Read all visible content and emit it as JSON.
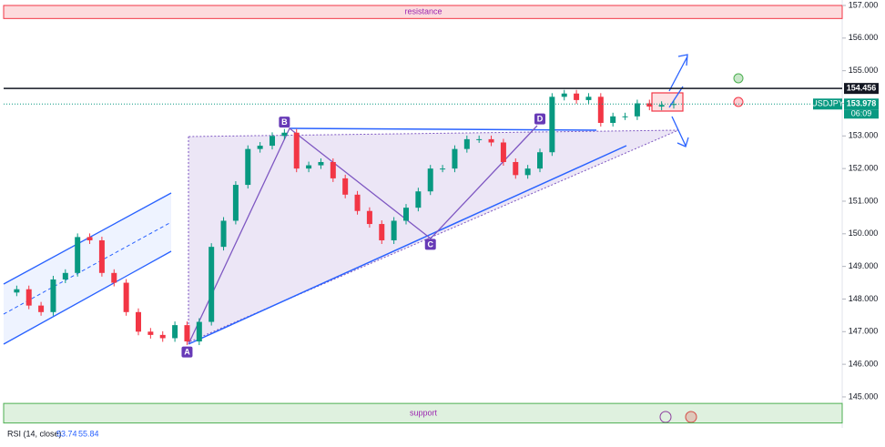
{
  "chart_data": {
    "type": "candlestick",
    "symbol": "USDJPY",
    "countdown": "06:09",
    "series": [
      {
        "name": "USDJPY",
        "up_color": "#089981",
        "down_color": "#f23645",
        "values": [
          148.2,
          148.3,
          147.8,
          147.6,
          148.6,
          148.8,
          149.9,
          149.8,
          148.8,
          148.5,
          147.6,
          147.0,
          146.9,
          146.8,
          147.2,
          146.7,
          147.3,
          149.6,
          150.4,
          151.5,
          152.6,
          152.7,
          153.0,
          153.1,
          152.0,
          152.1,
          152.2,
          151.7,
          151.2,
          150.7,
          150.3,
          149.8,
          150.4,
          150.8,
          151.3,
          152.0,
          152.0,
          152.6,
          152.9,
          152.9,
          152.8,
          152.2,
          151.8,
          152.0,
          152.5,
          154.2,
          154.3,
          154.1,
          154.2,
          153.4,
          153.6,
          153.6,
          154.0,
          153.9,
          153.95,
          153.978
        ]
      }
    ],
    "ylim": [
      144.0,
      157.15
    ],
    "yticks": [
      {
        "value": 145,
        "label": "145.000"
      },
      {
        "value": 146,
        "label": "146.000"
      },
      {
        "value": 147,
        "label": "147.000"
      },
      {
        "value": 148,
        "label": "148.000"
      },
      {
        "value": 149,
        "label": "149.000"
      },
      {
        "value": 150,
        "label": "150.000"
      },
      {
        "value": 151,
        "label": "151.000"
      },
      {
        "value": 152,
        "label": "152.000"
      },
      {
        "value": 153,
        "label": "153.000"
      },
      {
        "value": 154,
        "label": "154.000"
      },
      {
        "value": 155,
        "label": "155.000"
      },
      {
        "value": 156,
        "label": "156.000"
      },
      {
        "value": 157,
        "label": "157.000"
      }
    ],
    "levels": [
      {
        "value": 154.456,
        "label": "154.456",
        "color": "#131722"
      },
      {
        "value": 153.978,
        "label": "153.978",
        "color": "#089981"
      }
    ],
    "zones": [
      {
        "name": "resistance",
        "range": [
          156.6,
          157.0
        ],
        "color": "#f23645"
      },
      {
        "name": "support",
        "range": [
          144.2,
          144.8
        ],
        "color": "#4caf50"
      }
    ],
    "points": [
      {
        "label": "A",
        "index": 15,
        "value": 146.6
      },
      {
        "label": "B",
        "index": 23,
        "value": 153.2
      },
      {
        "label": "C",
        "index": 35,
        "value": 149.9
      },
      {
        "label": "D",
        "index": 44,
        "value": 153.3
      }
    ],
    "indicator": {
      "name": "RSI (14, close)",
      "values": [
        53.74,
        55.84
      ],
      "color": "#2962ff"
    }
  }
}
